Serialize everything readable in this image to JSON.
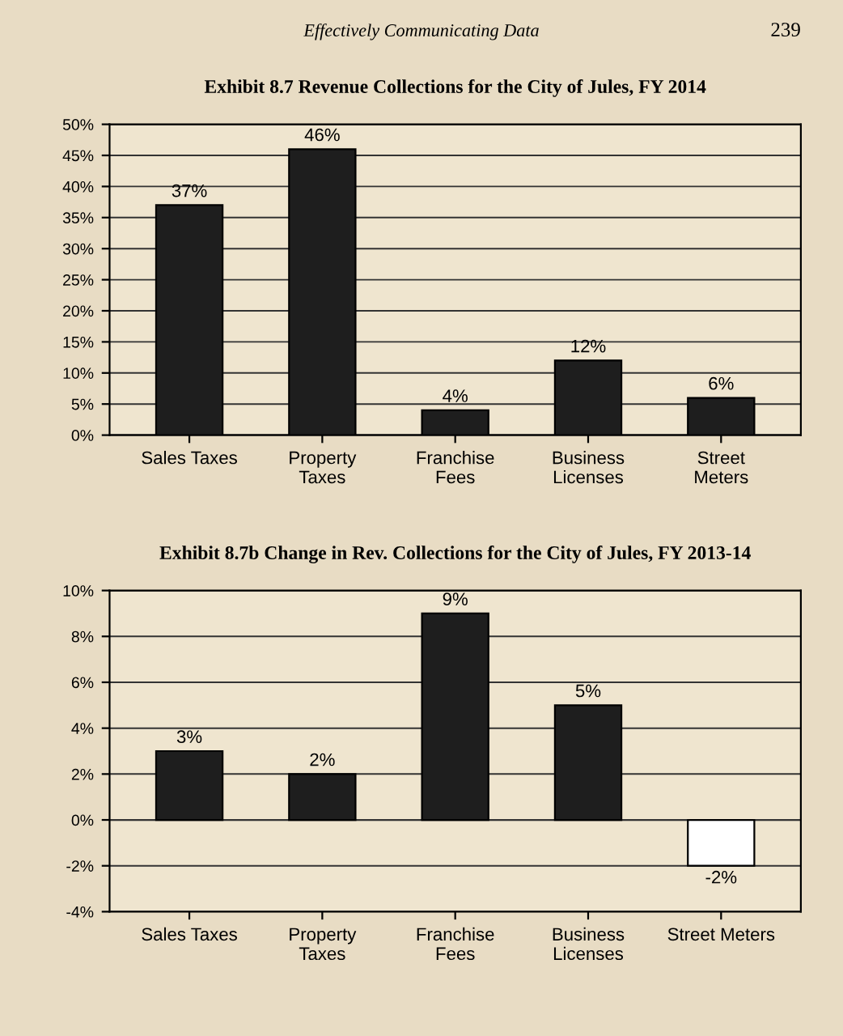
{
  "chart_data": [
    {
      "type": "bar",
      "title": "Exhibit 8.7 Revenue Collections for the City of Jules, FY 2014",
      "annotations": [
        "Effectively Communicating Data",
        "239"
      ],
      "categories": [
        "Sales Taxes",
        "Property\nTaxes",
        "Franchise\nFees",
        "Business\nLicenses",
        "Street\nMeters"
      ],
      "values": [
        37,
        46,
        4,
        12,
        6
      ],
      "value_labels": [
        "37%",
        "46%",
        "4%",
        "12%",
        "6%"
      ],
      "color": "#1e1e1e",
      "ylim": [
        0,
        50
      ],
      "yticks": [
        {
          "value": 0,
          "label": "0%"
        },
        {
          "value": 5,
          "label": "5%"
        },
        {
          "value": 10,
          "label": "10%"
        },
        {
          "value": 15,
          "label": "15%"
        },
        {
          "value": 20,
          "label": "20%"
        },
        {
          "value": 25,
          "label": "25%"
        },
        {
          "value": 30,
          "label": "30%"
        },
        {
          "value": 35,
          "label": "35%"
        },
        {
          "value": 40,
          "label": "40%"
        },
        {
          "value": 45,
          "label": "45%"
        },
        {
          "value": 50,
          "label": "50%"
        }
      ],
      "grid": "y",
      "legend": false
    },
    {
      "type": "bar",
      "title": "Exhibit 8.7b Change in Rev. Collections for the City of Jules, FY 2013-14",
      "categories": [
        "Sales Taxes",
        "Property\nTaxes",
        "Franchise\nFees",
        "Business\nLicenses",
        "Street Meters"
      ],
      "values": [
        3,
        2,
        9,
        5,
        -2
      ],
      "value_labels": [
        "3%",
        "2%",
        "9%",
        "5%",
        "-2%"
      ],
      "colors": [
        "#1e1e1e",
        "#1e1e1e",
        "#1e1e1e",
        "#1e1e1e",
        "#ffffff"
      ],
      "ylim": [
        -4,
        10
      ],
      "yticks": [
        {
          "value": -4,
          "label": "-4%"
        },
        {
          "value": -2,
          "label": "-2%"
        },
        {
          "value": 0,
          "label": "0%"
        },
        {
          "value": 2,
          "label": "2%"
        },
        {
          "value": 4,
          "label": "4%"
        },
        {
          "value": 6,
          "label": "6%"
        },
        {
          "value": 8,
          "label": "8%"
        },
        {
          "value": 10,
          "label": "10%"
        }
      ],
      "grid": "y",
      "legend": false
    }
  ]
}
